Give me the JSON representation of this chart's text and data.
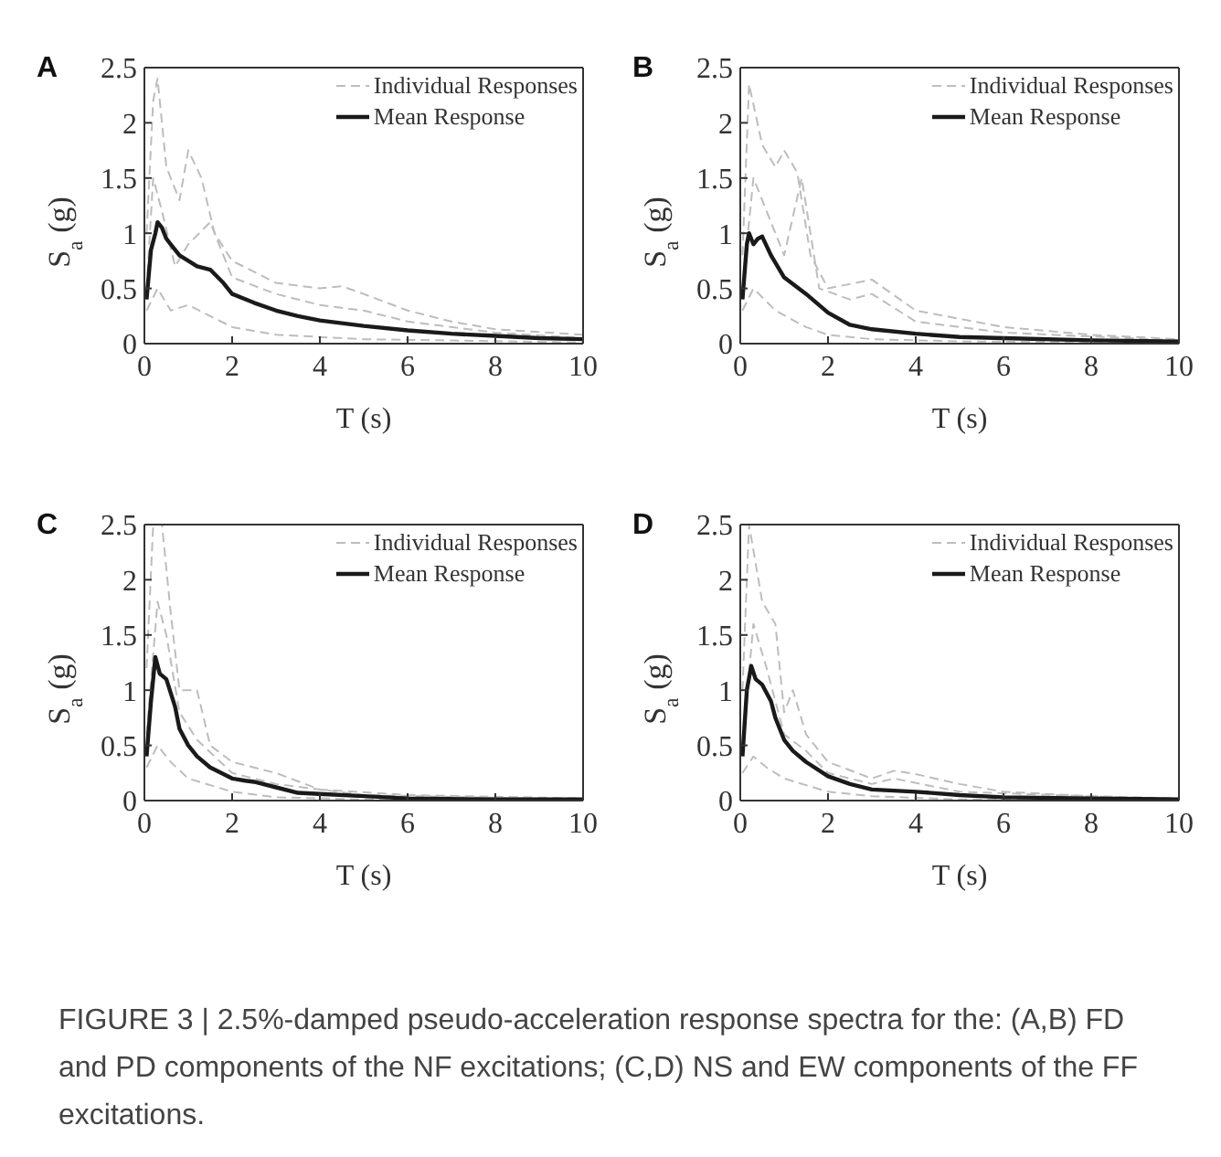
{
  "chart_data": [
    {
      "type": "line",
      "title": "A",
      "xlabel": "T (s)",
      "ylabel": "S$_{a}$ (g)",
      "xlim": [
        0,
        10
      ],
      "xticks": [
        0,
        2,
        4,
        6,
        8,
        10
      ],
      "ylim": [
        0,
        2.5
      ],
      "yticks": [
        0,
        0.5,
        1,
        1.5,
        2,
        2.5
      ],
      "legend": "top right",
      "series": [
        {
          "name": "Individual Responses",
          "color": "#bdbdbd",
          "line_style": "dashed",
          "x": [
            0.05,
            0.2,
            0.3,
            0.5,
            0.8,
            1.0,
            1.3,
            1.6,
            2,
            3,
            4,
            4.5,
            5,
            6,
            7,
            8,
            10
          ],
          "values": [
            1.0,
            2.2,
            2.4,
            1.6,
            1.3,
            1.75,
            1.5,
            1.0,
            0.75,
            0.55,
            0.5,
            0.52,
            0.45,
            0.3,
            0.2,
            0.13,
            0.08
          ]
        },
        {
          "color": "#bdbdbd",
          "line_style": "dashed",
          "x": [
            0.05,
            0.2,
            0.4,
            0.7,
            1,
            1.5,
            2,
            3,
            4,
            5,
            6,
            8,
            10
          ],
          "values": [
            0.5,
            1.5,
            1.2,
            0.7,
            0.9,
            1.1,
            0.6,
            0.45,
            0.35,
            0.3,
            0.2,
            0.1,
            0.05
          ]
        },
        {
          "color": "#bdbdbd",
          "line_style": "dashed",
          "x": [
            0.05,
            0.3,
            0.6,
            1,
            2,
            3,
            5,
            10
          ],
          "values": [
            0.3,
            0.5,
            0.3,
            0.35,
            0.15,
            0.08,
            0.04,
            0.01
          ]
        },
        {
          "name": "Mean Response",
          "color": "#1a1a1a",
          "line_style": "solid",
          "x": [
            0.05,
            0.15,
            0.25,
            0.3,
            0.4,
            0.5,
            0.6,
            0.8,
            1.0,
            1.2,
            1.5,
            1.8,
            2,
            2.5,
            3,
            3.5,
            4,
            5,
            6,
            7,
            8,
            9,
            10
          ],
          "values": [
            0.4,
            0.85,
            1.0,
            1.1,
            1.05,
            0.95,
            0.9,
            0.8,
            0.75,
            0.7,
            0.67,
            0.55,
            0.45,
            0.37,
            0.3,
            0.25,
            0.21,
            0.16,
            0.12,
            0.09,
            0.07,
            0.05,
            0.04
          ]
        }
      ]
    },
    {
      "type": "line",
      "title": "B",
      "xlabel": "T (s)",
      "ylabel": "S$_{a}$ (g)",
      "xlim": [
        0,
        10
      ],
      "xticks": [
        0,
        2,
        4,
        6,
        8,
        10
      ],
      "ylim": [
        0,
        2.5
      ],
      "yticks": [
        0,
        0.5,
        1,
        1.5,
        2,
        2.5
      ],
      "legend": "top right",
      "series": [
        {
          "name": "Individual Responses",
          "color": "#bdbdbd",
          "line_style": "dashed",
          "x": [
            0.05,
            0.2,
            0.5,
            0.8,
            1.0,
            1.3,
            1.6,
            2,
            3,
            4,
            6,
            8,
            10
          ],
          "values": [
            0.8,
            2.35,
            1.8,
            1.6,
            1.75,
            1.55,
            0.8,
            0.5,
            0.58,
            0.3,
            0.15,
            0.08,
            0.04
          ]
        },
        {
          "color": "#bdbdbd",
          "line_style": "dashed",
          "x": [
            0.05,
            0.3,
            0.6,
            1.0,
            1.4,
            1.8,
            2.5,
            3,
            4,
            6,
            10
          ],
          "values": [
            0.5,
            1.5,
            1.2,
            0.8,
            1.5,
            0.5,
            0.4,
            0.45,
            0.2,
            0.1,
            0.03
          ]
        },
        {
          "color": "#bdbdbd",
          "line_style": "dashed",
          "x": [
            0.05,
            0.3,
            0.8,
            1.5,
            2,
            3,
            5,
            10
          ],
          "values": [
            0.3,
            0.5,
            0.3,
            0.15,
            0.08,
            0.04,
            0.02,
            0.01
          ]
        },
        {
          "name": "Mean Response",
          "color": "#1a1a1a",
          "line_style": "solid",
          "x": [
            0.05,
            0.15,
            0.2,
            0.3,
            0.4,
            0.5,
            0.7,
            1.0,
            1.5,
            2,
            2.5,
            3,
            4,
            5,
            6,
            8,
            10
          ],
          "values": [
            0.4,
            0.9,
            1.0,
            0.9,
            0.95,
            0.97,
            0.8,
            0.6,
            0.45,
            0.28,
            0.17,
            0.13,
            0.09,
            0.06,
            0.05,
            0.03,
            0.02
          ]
        }
      ]
    },
    {
      "type": "line",
      "title": "C",
      "xlabel": "T (s)",
      "ylabel": "S$_{a}$ (g)",
      "xlim": [
        0,
        10
      ],
      "xticks": [
        0,
        2,
        4,
        6,
        8,
        10
      ],
      "ylim": [
        0,
        2.5
      ],
      "yticks": [
        0,
        0.5,
        1,
        1.5,
        2,
        2.5
      ],
      "legend": "top right",
      "series": [
        {
          "name": "Individual Responses",
          "color": "#bdbdbd",
          "line_style": "dashed",
          "x": [
            0.05,
            0.2,
            0.4,
            0.6,
            0.8,
            1.2,
            1.5,
            2,
            3,
            4,
            6,
            10
          ],
          "values": [
            1.2,
            2.5,
            2.5,
            1.7,
            1.0,
            1.0,
            0.5,
            0.35,
            0.25,
            0.1,
            0.05,
            0.02
          ]
        },
        {
          "color": "#bdbdbd",
          "line_style": "dashed",
          "x": [
            0.05,
            0.3,
            0.5,
            0.8,
            1.2,
            2,
            3,
            5,
            10
          ],
          "values": [
            0.6,
            1.8,
            1.5,
            0.8,
            0.55,
            0.25,
            0.15,
            0.05,
            0.01
          ]
        },
        {
          "color": "#bdbdbd",
          "line_style": "dashed",
          "x": [
            0.05,
            0.3,
            0.6,
            1,
            2,
            3,
            5,
            10
          ],
          "values": [
            0.3,
            0.5,
            0.35,
            0.2,
            0.08,
            0.03,
            0.01,
            0
          ]
        },
        {
          "name": "Mean Response",
          "color": "#1a1a1a",
          "line_style": "solid",
          "x": [
            0.05,
            0.15,
            0.25,
            0.35,
            0.5,
            0.7,
            0.8,
            1.0,
            1.2,
            1.5,
            2,
            2.3,
            2.5,
            3,
            3.5,
            4,
            5,
            6,
            8,
            10
          ],
          "values": [
            0.4,
            0.9,
            1.3,
            1.15,
            1.1,
            0.85,
            0.65,
            0.5,
            0.4,
            0.3,
            0.2,
            0.18,
            0.17,
            0.12,
            0.07,
            0.06,
            0.04,
            0.02,
            0.01,
            0.01
          ]
        }
      ]
    },
    {
      "type": "line",
      "title": "D",
      "xlabel": "T (s)",
      "ylabel": "S$_{a}$ (g)",
      "xlim": [
        0,
        10
      ],
      "xticks": [
        0,
        2,
        4,
        6,
        8,
        10
      ],
      "ylim": [
        0,
        2.5
      ],
      "yticks": [
        0,
        0.5,
        1,
        1.5,
        2,
        2.5
      ],
      "legend": "top right",
      "annotations": [
        "FIGURE 3 | 2.5%-damped pseudo-acceleration response spectra for the: (A,B) FD and PD components of the NF excitations; (C,D) NS and EW components of the FF excitations."
      ],
      "series": [
        {
          "name": "Individual Responses",
          "color": "#bdbdbd",
          "line_style": "dashed",
          "x": [
            0.05,
            0.2,
            0.5,
            0.8,
            1.0,
            1.2,
            1.5,
            2,
            3,
            3.5,
            4,
            5,
            6,
            8,
            10
          ],
          "values": [
            1.0,
            2.5,
            1.8,
            1.6,
            0.8,
            1.0,
            0.6,
            0.35,
            0.2,
            0.27,
            0.24,
            0.15,
            0.08,
            0.04,
            0.02
          ]
        },
        {
          "color": "#bdbdbd",
          "line_style": "dashed",
          "x": [
            0.05,
            0.3,
            0.6,
            1.0,
            1.5,
            2,
            3,
            3.5,
            5,
            10
          ],
          "values": [
            0.5,
            1.6,
            1.2,
            0.6,
            0.45,
            0.25,
            0.15,
            0.2,
            0.08,
            0.01
          ]
        },
        {
          "color": "#bdbdbd",
          "line_style": "dashed",
          "x": [
            0.05,
            0.3,
            0.6,
            1,
            2,
            3,
            5,
            10
          ],
          "values": [
            0.25,
            0.4,
            0.3,
            0.2,
            0.08,
            0.04,
            0.01,
            0
          ]
        },
        {
          "name": "Mean Response",
          "color": "#1a1a1a",
          "line_style": "solid",
          "x": [
            0.05,
            0.15,
            0.25,
            0.35,
            0.5,
            0.7,
            0.8,
            1.0,
            1.2,
            1.5,
            2,
            2.5,
            3,
            3.5,
            4,
            5,
            6,
            8,
            10
          ],
          "values": [
            0.4,
            1.0,
            1.22,
            1.1,
            1.05,
            0.9,
            0.75,
            0.55,
            0.45,
            0.35,
            0.22,
            0.15,
            0.1,
            0.09,
            0.08,
            0.05,
            0.03,
            0.02,
            0.01
          ]
        }
      ]
    }
  ]
}
